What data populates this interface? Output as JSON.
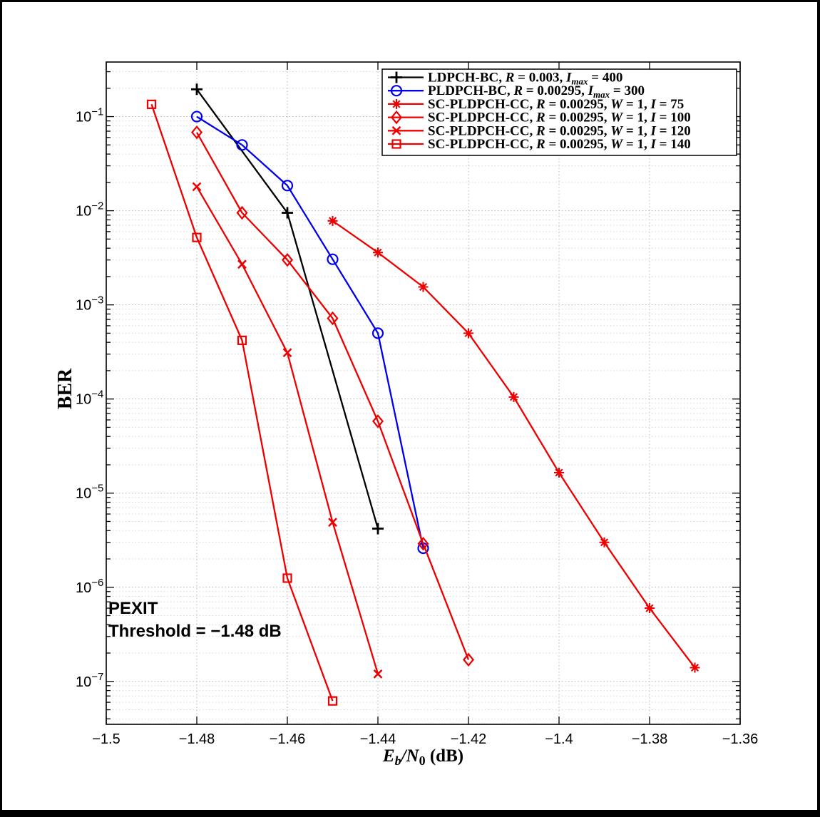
{
  "figure": {
    "frame_color": "#000000",
    "background": "#ffffff",
    "axis_color": "#000000",
    "grid_major_color": "#b4b4b4",
    "grid_minor_color": "#d7d7d7"
  },
  "chart_data": {
    "type": "line",
    "title": "",
    "xlabel_plain": "Eb/N0 (dB)",
    "xlabel_parts": [
      {
        "t": "E",
        "it": 1
      },
      {
        "t": "b",
        "it": 1,
        "sub": 1
      },
      {
        "t": "/",
        "it": 1
      },
      {
        "t": "N",
        "it": 1
      },
      {
        "t": "0",
        "sub": 1
      },
      {
        "t": " (dB)"
      }
    ],
    "ylabel": "BER",
    "x_scale": "linear",
    "y_scale": "log",
    "xlim": [
      -1.5,
      -1.36
    ],
    "ylim": [
      3.5e-08,
      0.38
    ],
    "grid": "on",
    "y_minor_grid": "on",
    "legend_position": "top-right-inside",
    "x_ticks": [
      {
        "v": -1.5,
        "label": "−1.5"
      },
      {
        "v": -1.48,
        "label": "−1.48"
      },
      {
        "v": -1.46,
        "label": "−1.46"
      },
      {
        "v": -1.44,
        "label": "−1.44"
      },
      {
        "v": -1.42,
        "label": "−1.42"
      },
      {
        "v": -1.4,
        "label": "−1.4"
      },
      {
        "v": -1.38,
        "label": "−1.38"
      },
      {
        "v": -1.36,
        "label": "−1.36"
      }
    ],
    "y_tick_exponents": [
      -1,
      -2,
      -3,
      -4,
      -5,
      -6,
      -7
    ],
    "annotation": {
      "lines": [
        "PEXIT",
        "Threshold = −1.48 dB"
      ]
    },
    "series": [
      {
        "id": "ldpch-bc",
        "label_plain": "LDPCH-BC, R = 0.003, Imax = 400",
        "label_parts": [
          {
            "t": "LDPCH-BC, "
          },
          {
            "t": "R",
            "it": 1
          },
          {
            "t": " = 0.003, "
          },
          {
            "t": "I",
            "it": 1
          },
          {
            "t": "max",
            "it": 1,
            "sub": 1
          },
          {
            "t": " = 400"
          }
        ],
        "color": "#000000",
        "marker": "plus",
        "x": [
          -1.48,
          -1.46,
          -1.44
        ],
        "y": [
          0.195,
          0.0095,
          4.2e-06
        ]
      },
      {
        "id": "pldpch-bc",
        "label_plain": "PLDPCH-BC, R = 0.00295, Imax = 300",
        "label_parts": [
          {
            "t": "PLDPCH-BC, "
          },
          {
            "t": "R",
            "it": 1
          },
          {
            "t": " = 0.00295, "
          },
          {
            "t": "I",
            "it": 1
          },
          {
            "t": "max",
            "it": 1,
            "sub": 1
          },
          {
            "t": " = 300"
          }
        ],
        "color": "#0000ee",
        "marker": "circle",
        "x": [
          -1.48,
          -1.47,
          -1.46,
          -1.45,
          -1.44,
          -1.43
        ],
        "y": [
          0.1,
          0.05,
          0.0185,
          0.00305,
          0.0005,
          2.6e-06
        ]
      },
      {
        "id": "sc-pldpch-cc-i75",
        "label_plain": "SC-PLDPCH-CC, R = 0.00295, W = 1, I = 75",
        "label_parts": [
          {
            "t": "SC-PLDPCH-CC, "
          },
          {
            "t": "R",
            "it": 1
          },
          {
            "t": " = 0.00295, "
          },
          {
            "t": "W",
            "it": 1
          },
          {
            "t": " = 1, "
          },
          {
            "t": "I",
            "it": 1
          },
          {
            "t": " = 75"
          }
        ],
        "color": "#ee0000",
        "marker": "asterisk",
        "x": [
          -1.45,
          -1.44,
          -1.43,
          -1.42,
          -1.41,
          -1.4,
          -1.39,
          -1.38,
          -1.37
        ],
        "y": [
          0.0078,
          0.0036,
          0.00155,
          0.0005,
          0.000105,
          1.65e-05,
          3e-06,
          6e-07,
          1.4e-07
        ]
      },
      {
        "id": "sc-pldpch-cc-i100",
        "label_plain": "SC-PLDPCH-CC, R = 0.00295, W = 1, I = 100",
        "label_parts": [
          {
            "t": "SC-PLDPCH-CC, "
          },
          {
            "t": "R",
            "it": 1
          },
          {
            "t": " = 0.00295, "
          },
          {
            "t": "W",
            "it": 1
          },
          {
            "t": " = 1, "
          },
          {
            "t": "I",
            "it": 1
          },
          {
            "t": " = 100"
          }
        ],
        "color": "#ee0000",
        "marker": "diamond",
        "x": [
          -1.48,
          -1.47,
          -1.46,
          -1.45,
          -1.44,
          -1.43,
          -1.42
        ],
        "y": [
          0.068,
          0.0095,
          0.003,
          0.00072,
          5.8e-05,
          2.9e-06,
          1.7e-07
        ]
      },
      {
        "id": "sc-pldpch-cc-i120",
        "label_plain": "SC-PLDPCH-CC, R = 0.00295, W = 1, I = 120",
        "label_parts": [
          {
            "t": "SC-PLDPCH-CC, "
          },
          {
            "t": "R",
            "it": 1
          },
          {
            "t": " = 0.00295, "
          },
          {
            "t": "W",
            "it": 1
          },
          {
            "t": " = 1, "
          },
          {
            "t": "I",
            "it": 1
          },
          {
            "t": " = 120"
          }
        ],
        "color": "#ee0000",
        "marker": "x",
        "x": [
          -1.48,
          -1.47,
          -1.46,
          -1.45,
          -1.44
        ],
        "y": [
          0.018,
          0.0027,
          0.00031,
          4.9e-06,
          1.2e-07
        ]
      },
      {
        "id": "sc-pldpch-cc-i140",
        "label_plain": "SC-PLDPCH-CC, R = 0.00295, W = 1, I = 140",
        "label_parts": [
          {
            "t": "SC-PLDPCH-CC, "
          },
          {
            "t": "R",
            "it": 1
          },
          {
            "t": " = 0.00295, "
          },
          {
            "t": "W",
            "it": 1
          },
          {
            "t": " = 1, "
          },
          {
            "t": "I",
            "it": 1
          },
          {
            "t": " = 140"
          }
        ],
        "color": "#ee0000",
        "marker": "square",
        "x": [
          -1.49,
          -1.48,
          -1.47,
          -1.46,
          -1.45
        ],
        "y": [
          0.135,
          0.0052,
          0.00042,
          1.25e-06,
          6.2e-08
        ]
      }
    ]
  }
}
